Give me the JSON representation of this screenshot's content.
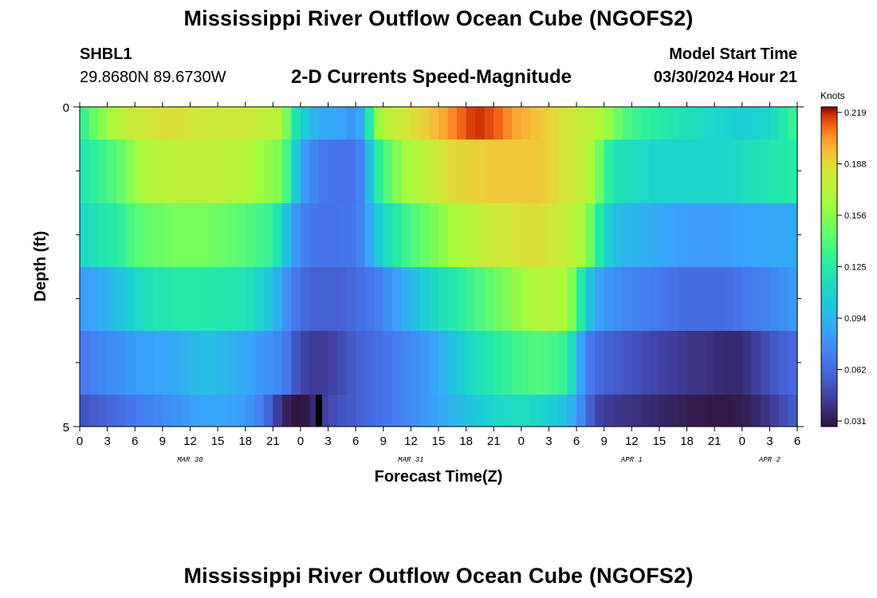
{
  "header": {
    "title": "Mississippi River Outflow Ocean Cube (NGOFS2)",
    "title_repeat": "Mississippi River Outflow Ocean Cube (NGOFS2)",
    "station_id": "SHBL1",
    "coordinates": "29.8680N  89.6730W",
    "subtitle": "2-D Currents Speed-Magnitude",
    "model_start_label": "Model Start Time",
    "model_start_value": "03/30/2024 Hour 21"
  },
  "chart_data": {
    "type": "heatmap",
    "title": "2-D Currents Speed-Magnitude",
    "xlabel": "Forecast Time(Z)",
    "ylabel": "Depth (ft)",
    "x_start_hour": 0,
    "x_end_hour": 78,
    "x_tick_labels": [
      "0",
      "3",
      "6",
      "9",
      "12",
      "15",
      "18",
      "21",
      "0",
      "3",
      "6",
      "9",
      "12",
      "15",
      "18",
      "21",
      "0",
      "3",
      "6",
      "9",
      "12",
      "15",
      "18",
      "21",
      "0",
      "3",
      "6"
    ],
    "date_labels": [
      {
        "label": "MAR 30",
        "hour": 12
      },
      {
        "label": "MAR 31",
        "hour": 36
      },
      {
        "label": "APR 1",
        "hour": 60
      },
      {
        "label": "APR 2",
        "hour": 75
      }
    ],
    "y_tick_labels": [
      "0",
      "5"
    ],
    "ylim": [
      0,
      5
    ],
    "colorbar": {
      "unit_label": "Knots",
      "ticks": [
        "0.219",
        "0.188",
        "0.156",
        "0.125",
        "0.094",
        "0.062",
        "0.031"
      ],
      "min": 0.031,
      "max": 0.219
    },
    "rows": [
      {
        "depth_band": "layer 1 (surface)",
        "control_hours": [
          0,
          1,
          3,
          5,
          9,
          14,
          18,
          22,
          23,
          24,
          25,
          26,
          28,
          30,
          31,
          32,
          33,
          35,
          38,
          40,
          43,
          45,
          47,
          50,
          52,
          55,
          57,
          59,
          61,
          65,
          69,
          72,
          75,
          78
        ],
        "control_values": [
          0.125,
          0.14,
          0.16,
          0.175,
          0.185,
          0.18,
          0.18,
          0.17,
          0.13,
          0.11,
          0.1,
          0.09,
          0.09,
          0.08,
          0.1,
          0.15,
          0.17,
          0.18,
          0.19,
          0.2,
          0.215,
          0.21,
          0.2,
          0.19,
          0.185,
          0.175,
          0.165,
          0.14,
          0.13,
          0.12,
          0.11,
          0.105,
          0.11,
          0.135
        ]
      },
      {
        "depth_band": "layer 2",
        "control_hours": [
          0,
          2,
          4,
          6,
          8,
          12,
          18,
          22,
          23,
          24,
          26,
          28,
          30,
          31,
          32,
          35,
          40,
          45,
          50,
          54,
          56,
          57,
          58,
          60,
          63,
          66,
          70,
          75,
          78
        ],
        "control_values": [
          0.12,
          0.13,
          0.14,
          0.16,
          0.17,
          0.175,
          0.17,
          0.15,
          0.12,
          0.09,
          0.07,
          0.068,
          0.068,
          0.08,
          0.12,
          0.16,
          0.185,
          0.19,
          0.19,
          0.18,
          0.16,
          0.135,
          0.12,
          0.115,
          0.11,
          0.11,
          0.11,
          0.12,
          0.125
        ]
      },
      {
        "depth_band": "layer 3",
        "control_hours": [
          0,
          2,
          4,
          6,
          10,
          14,
          18,
          21,
          22,
          23,
          24,
          26,
          28,
          30,
          31,
          32,
          35,
          40,
          45,
          50,
          53,
          55,
          56,
          57,
          58,
          60,
          63,
          66,
          70,
          75,
          78
        ],
        "control_values": [
          0.11,
          0.12,
          0.125,
          0.14,
          0.15,
          0.15,
          0.14,
          0.13,
          0.11,
          0.09,
          0.075,
          0.068,
          0.068,
          0.07,
          0.08,
          0.1,
          0.13,
          0.16,
          0.18,
          0.185,
          0.175,
          0.16,
          0.135,
          0.115,
          0.1,
          0.095,
          0.09,
          0.085,
          0.085,
          0.09,
          0.09
        ]
      },
      {
        "depth_band": "layer 4",
        "control_hours": [
          0,
          2,
          4,
          6,
          8,
          12,
          18,
          21,
          22,
          24,
          26,
          28,
          30,
          32,
          35,
          38,
          42,
          46,
          50,
          53,
          54,
          55,
          56,
          58,
          60,
          63,
          66,
          70,
          75,
          78
        ],
        "control_values": [
          0.085,
          0.09,
          0.1,
          0.11,
          0.12,
          0.125,
          0.12,
          0.1,
          0.085,
          0.065,
          0.06,
          0.06,
          0.065,
          0.07,
          0.09,
          0.11,
          0.13,
          0.15,
          0.17,
          0.165,
          0.14,
          0.11,
          0.09,
          0.08,
          0.075,
          0.07,
          0.065,
          0.065,
          0.075,
          0.085
        ]
      },
      {
        "depth_band": "layer 5",
        "control_hours": [
          0,
          2,
          4,
          6,
          10,
          14,
          18,
          22,
          24,
          26,
          28,
          30,
          32,
          34,
          38,
          42,
          45,
          48,
          50,
          53,
          54,
          55,
          56,
          58,
          62,
          66,
          70,
          72,
          74,
          76,
          78
        ],
        "control_values": [
          0.07,
          0.075,
          0.08,
          0.085,
          0.09,
          0.1,
          0.09,
          0.075,
          0.05,
          0.045,
          0.05,
          0.06,
          0.065,
          0.07,
          0.085,
          0.11,
          0.125,
          0.135,
          0.14,
          0.13,
          0.1,
          0.075,
          0.065,
          0.06,
          0.05,
          0.045,
          0.04,
          0.04,
          0.05,
          0.06,
          0.065
        ]
      },
      {
        "depth_band": "layer 6 (bottom)",
        "control_hours": [
          0,
          2,
          4,
          6,
          10,
          14,
          18,
          20,
          22,
          23,
          24,
          25,
          26,
          28,
          30,
          32,
          34,
          38,
          42,
          45,
          48,
          50,
          53,
          54,
          55,
          56,
          58,
          62,
          66,
          70,
          72,
          74,
          76,
          78
        ],
        "control_values": [
          0.055,
          0.06,
          0.065,
          0.07,
          0.08,
          0.09,
          0.085,
          0.07,
          0.04,
          0.033,
          0.031,
          0.035,
          0.045,
          0.055,
          0.06,
          0.065,
          0.07,
          0.085,
          0.1,
          0.11,
          0.115,
          0.11,
          0.1,
          0.085,
          0.07,
          0.05,
          0.045,
          0.04,
          0.035,
          0.033,
          0.035,
          0.04,
          0.05,
          0.06
        ]
      }
    ],
    "missing_cell": {
      "hour": 26,
      "row": 6
    }
  },
  "colors": {
    "missing": "#000000",
    "axis": "#000000"
  }
}
